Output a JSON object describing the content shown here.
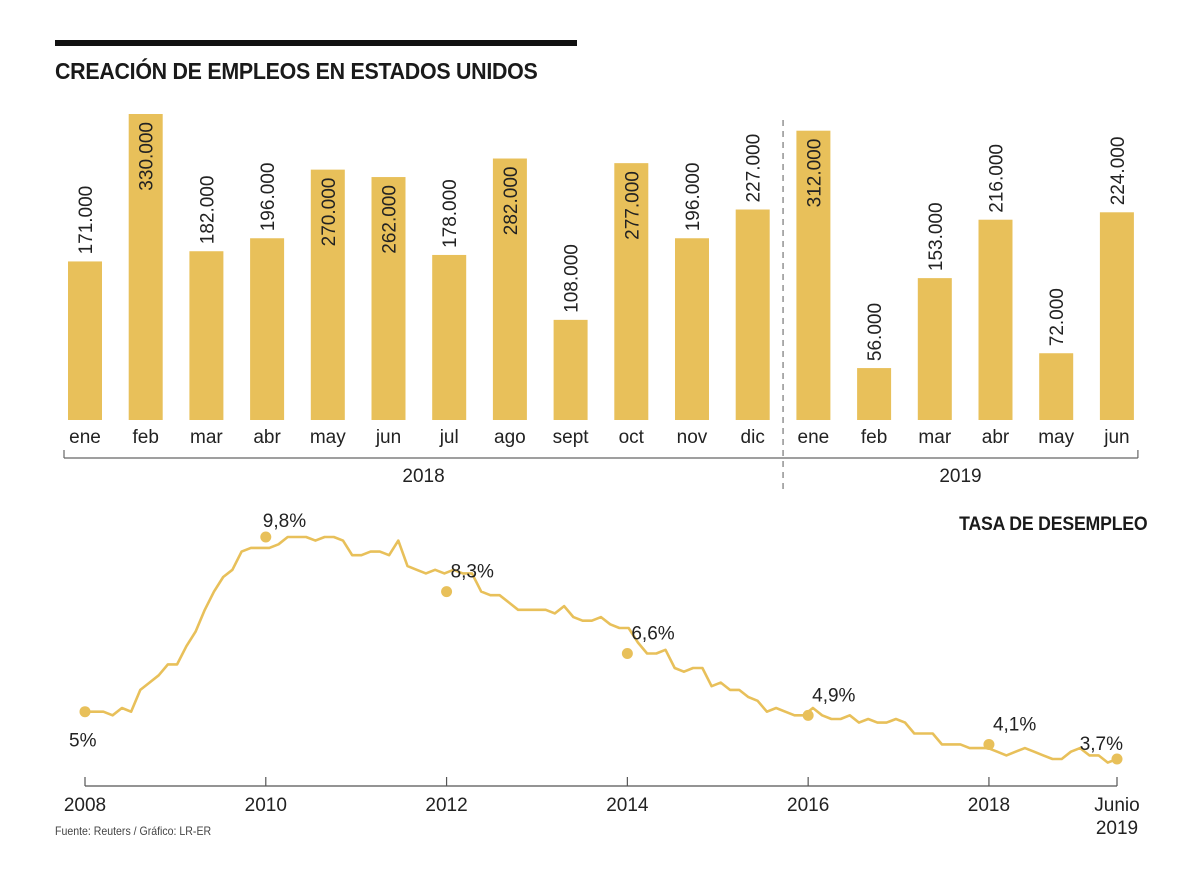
{
  "colors": {
    "accent": "#E8C05A",
    "text": "#1a1a1a",
    "axis": "#555555",
    "inbar_text": "#FFFFFF"
  },
  "header": {
    "title": "CREACIÓN DE EMPLEOS EN ESTADOS UNIDOS"
  },
  "footer": {
    "source": "Fuente: Reuters / Gráfico: LR-ER"
  },
  "chart_data": [
    {
      "type": "bar",
      "title": "CREACIÓN DE EMPLEOS EN ESTADOS UNIDOS",
      "xlabel": "",
      "ylabel": "",
      "ylim": [
        0,
        330000
      ],
      "grid": false,
      "categories": [
        "ene",
        "feb",
        "mar",
        "abr",
        "may",
        "jun",
        "jul",
        "ago",
        "sept",
        "oct",
        "nov",
        "dic",
        "ene",
        "feb",
        "mar",
        "abr",
        "may",
        "jun"
      ],
      "groups": [
        {
          "label": "2018",
          "start": 0,
          "end": 11
        },
        {
          "label": "2019",
          "start": 12,
          "end": 17
        }
      ],
      "values": [
        171000,
        330000,
        182000,
        196000,
        270000,
        262000,
        178000,
        282000,
        108000,
        277000,
        196000,
        227000,
        312000,
        56000,
        153000,
        216000,
        72000,
        224000
      ],
      "labels": [
        "171.000",
        "330.000",
        "182.000",
        "196.000",
        "270.000",
        "262.000",
        "178.000",
        "282.000",
        "108.000",
        "277.000",
        "196.000",
        "227.000",
        "312.000",
        "56.000",
        "153.000",
        "216.000",
        "72.000",
        "224.000"
      ],
      "label_inside": [
        false,
        true,
        false,
        false,
        true,
        true,
        false,
        true,
        false,
        true,
        false,
        false,
        true,
        false,
        false,
        false,
        false,
        false
      ]
    },
    {
      "type": "line",
      "title": "TASA DE DESEMPLEO",
      "xlabel": "",
      "ylabel": "",
      "xlim": [
        2008.0,
        2019.4167
      ],
      "ylim": [
        3.7,
        9.8
      ],
      "grid": false,
      "x_ticks": [
        "2008",
        "2010",
        "2012",
        "2014",
        "2016",
        "2018",
        "Junio 2019"
      ],
      "x_tick_values": [
        2008.0,
        2010.0,
        2012.0,
        2014.0,
        2016.0,
        2018.0,
        2019.4167
      ],
      "series": [
        {
          "name": "Tasa de desempleo (%)",
          "x_start": 2008.0,
          "step_months": 1,
          "values": [
            5.0,
            5.0,
            5.0,
            4.9,
            5.1,
            5.0,
            5.6,
            5.8,
            6.0,
            6.3,
            6.3,
            6.8,
            7.2,
            7.8,
            8.3,
            8.7,
            8.9,
            9.4,
            9.5,
            9.5,
            9.5,
            9.6,
            9.8,
            9.8,
            9.8,
            9.7,
            9.8,
            9.8,
            9.7,
            9.3,
            9.3,
            9.4,
            9.4,
            9.3,
            9.7,
            9.0,
            8.9,
            8.8,
            8.9,
            8.8,
            8.9,
            8.8,
            8.8,
            8.3,
            8.2,
            8.2,
            8.0,
            7.8,
            7.8,
            7.8,
            7.8,
            7.7,
            7.9,
            7.6,
            7.5,
            7.5,
            7.6,
            7.4,
            7.3,
            7.3,
            6.9,
            6.6,
            6.6,
            6.7,
            6.2,
            6.1,
            6.2,
            6.2,
            5.7,
            5.8,
            5.6,
            5.6,
            5.4,
            5.3,
            5.0,
            5.1,
            5.0,
            4.9,
            4.9,
            5.1,
            4.9,
            4.8,
            4.8,
            4.9,
            4.7,
            4.8,
            4.7,
            4.7,
            4.8,
            4.7,
            4.4,
            4.4,
            4.4,
            4.1,
            4.1,
            4.1,
            4.0,
            4.0,
            4.0,
            3.9,
            3.8,
            3.9,
            4.0,
            3.9,
            3.8,
            3.7,
            3.7,
            3.9,
            4.0,
            3.8,
            3.8,
            3.6,
            3.7
          ],
          "highlights": [
            {
              "x": 2008.0,
              "value": 5.0,
              "label": "5%"
            },
            {
              "x": 2010.0,
              "value": 9.8,
              "label": "9,8%"
            },
            {
              "x": 2012.0,
              "value": 8.3,
              "label": "8,3%"
            },
            {
              "x": 2014.0,
              "value": 6.6,
              "label": "6,6%"
            },
            {
              "x": 2016.0,
              "value": 4.9,
              "label": "4,9%"
            },
            {
              "x": 2018.0,
              "value": 4.1,
              "label": "4,1%"
            },
            {
              "x": 2019.4167,
              "value": 3.7,
              "label": "3,7%"
            }
          ]
        }
      ]
    }
  ]
}
